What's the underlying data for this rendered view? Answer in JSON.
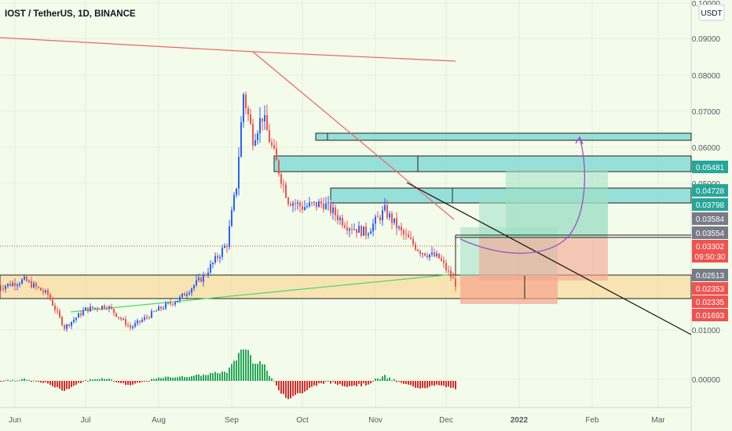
{
  "header": {
    "title": "IOST / TetherUS, 1D, BINANCE"
  },
  "currency": "USDT",
  "colors": {
    "background": "#f3fbea",
    "up": "#2962ff",
    "down": "#ef5350",
    "hist_up": "#26a65b",
    "hist_down": "#d32f2f",
    "support_zone": "#f9dca0",
    "resistance_zone": "#7fdad6",
    "target_zone": "#9ee0c4",
    "stop_zone": "#f5a58f",
    "red_line": "#f06464",
    "green_line": "#4cd964",
    "projection": "#9b4dca"
  },
  "chart_data": {
    "type": "candlestick",
    "title": "IOST / TetherUS, 1D, BINANCE",
    "y_axis": {
      "unit": "USDT",
      "range": [
        0.0,
        0.1
      ],
      "scale": "linear",
      "ticks": [
        "0.10000",
        "0.09000",
        "0.08000",
        "0.07000",
        "0.06000",
        "0.05000",
        "0.01000",
        "0.00000"
      ]
    },
    "x_axis": {
      "ticks": [
        "Jun",
        "Jul",
        "Aug",
        "Sep",
        "Oct",
        "Nov",
        "Dec",
        "2022",
        "Feb",
        "Mar"
      ]
    },
    "price_labels": [
      {
        "value": "0.05481",
        "color": "#26a69a"
      },
      {
        "value": "0.04728",
        "color": "#26a69a"
      },
      {
        "value": "0.03798",
        "color": "#26a69a"
      },
      {
        "value": "0.03584",
        "color": "#787b86"
      },
      {
        "value": "0.03554",
        "color": "#787b86"
      },
      {
        "value": "0.03302",
        "color": "#ef5350"
      },
      {
        "value": "09:50:30",
        "color": "#ef5350"
      },
      {
        "value": "0.02513",
        "color": "#787b86"
      },
      {
        "value": "0.02353",
        "color": "#ef5350"
      },
      {
        "value": "0.02335",
        "color": "#ef5350"
      },
      {
        "value": "0.01693",
        "color": "#ef5350"
      }
    ],
    "last_price": 0.03302,
    "countdown": "09:50:30",
    "price_points": [
      {
        "date": "2021-05-25",
        "price": 0.032
      },
      {
        "date": "2021-06-05",
        "price": 0.034
      },
      {
        "date": "2021-06-15",
        "price": 0.03
      },
      {
        "date": "2021-06-22",
        "price": 0.021
      },
      {
        "date": "2021-07-01",
        "price": 0.026
      },
      {
        "date": "2021-07-10",
        "price": 0.027
      },
      {
        "date": "2021-07-20",
        "price": 0.021
      },
      {
        "date": "2021-08-01",
        "price": 0.026
      },
      {
        "date": "2021-08-10",
        "price": 0.029
      },
      {
        "date": "2021-08-20",
        "price": 0.035
      },
      {
        "date": "2021-08-30",
        "price": 0.044
      },
      {
        "date": "2021-09-03",
        "price": 0.06
      },
      {
        "date": "2021-09-06",
        "price": 0.085
      },
      {
        "date": "2021-09-10",
        "price": 0.073
      },
      {
        "date": "2021-09-14",
        "price": 0.079
      },
      {
        "date": "2021-09-20",
        "price": 0.066
      },
      {
        "date": "2021-09-25",
        "price": 0.056
      },
      {
        "date": "2021-10-01",
        "price": 0.054
      },
      {
        "date": "2021-10-10",
        "price": 0.055
      },
      {
        "date": "2021-10-20",
        "price": 0.049
      },
      {
        "date": "2021-10-28",
        "price": 0.047
      },
      {
        "date": "2021-11-05",
        "price": 0.053
      },
      {
        "date": "2021-11-12",
        "price": 0.047
      },
      {
        "date": "2021-11-20",
        "price": 0.042
      },
      {
        "date": "2021-11-28",
        "price": 0.04
      },
      {
        "date": "2021-12-03",
        "price": 0.035
      },
      {
        "date": "2021-12-05",
        "price": 0.033
      }
    ]
  }
}
